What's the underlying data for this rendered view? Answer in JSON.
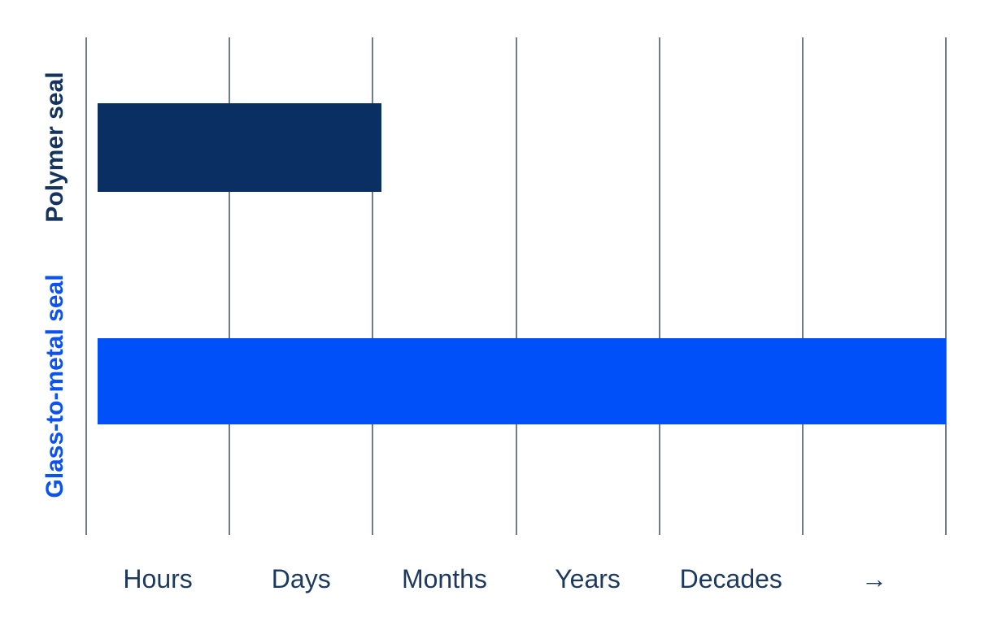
{
  "chart_data": {
    "type": "bar",
    "orientation": "horizontal",
    "title": "",
    "categories": [
      "Polymer seal",
      "Glass-to-metal seal"
    ],
    "x_axis": {
      "tick_labels": [
        "Hours",
        "Days",
        "Months",
        "Years",
        "Decades",
        "→"
      ],
      "scale": "ordinal duration bands, time increasing to the right",
      "band_units": "Hours=0-1, Days=1-2, Months=2-3, Years=3-4, Decades=4-5, beyond(→)=5-6",
      "range": [
        0,
        6
      ],
      "gridlines": "7 vertical lines at band boundaries",
      "legend_position": "none",
      "grid": "vertical only"
    },
    "bars": [
      {
        "category": "Polymer seal",
        "start_units": 0.08,
        "end_units": 2.06,
        "reading": "seal lifetime from hours up to about days",
        "color": "#0a2f63",
        "label_color": "#14335f"
      },
      {
        "category": "Glass-to-metal seal",
        "start_units": 0.08,
        "end_units": 6.0,
        "reading": "seal lifetime from hours to decades and beyond (arrow)",
        "color": "#0050fa",
        "label_color": "#0b52f0"
      }
    ]
  },
  "colors": {
    "background": "#ffffff",
    "gridline": "#6e7b8b",
    "x_axis_text": "#1c3a5f"
  }
}
